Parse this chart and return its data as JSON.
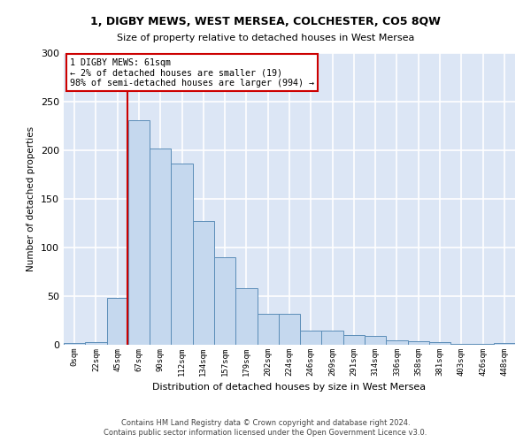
{
  "title": "1, DIGBY MEWS, WEST MERSEA, COLCHESTER, CO5 8QW",
  "subtitle": "Size of property relative to detached houses in West Mersea",
  "xlabel": "Distribution of detached houses by size in West Mersea",
  "ylabel": "Number of detached properties",
  "footer_line1": "Contains HM Land Registry data © Crown copyright and database right 2024.",
  "footer_line2": "Contains public sector information licensed under the Open Government Licence v3.0.",
  "bar_labels": [
    "0sqm",
    "22sqm",
    "45sqm",
    "67sqm",
    "90sqm",
    "112sqm",
    "134sqm",
    "157sqm",
    "179sqm",
    "202sqm",
    "224sqm",
    "246sqm",
    "269sqm",
    "291sqm",
    "314sqm",
    "336sqm",
    "358sqm",
    "381sqm",
    "403sqm",
    "426sqm",
    "448sqm"
  ],
  "bar_values": [
    2,
    3,
    48,
    231,
    202,
    186,
    127,
    90,
    58,
    32,
    32,
    15,
    15,
    10,
    9,
    5,
    4,
    3,
    1,
    1,
    2
  ],
  "bar_color": "#c5d8ee",
  "bar_edge_color": "#5b8db8",
  "background_color": "#dce6f5",
  "fig_background_color": "#ffffff",
  "grid_color": "#ffffff",
  "annotation_text": "1 DIGBY MEWS: 61sqm\n← 2% of detached houses are smaller (19)\n98% of semi-detached houses are larger (994) →",
  "annotation_box_facecolor": "#ffffff",
  "annotation_box_edgecolor": "#cc0000",
  "vline_color": "#cc0000",
  "vline_x_data": 2.97,
  "ylim": [
    0,
    300
  ],
  "yticks": [
    0,
    50,
    100,
    150,
    200,
    250,
    300
  ]
}
